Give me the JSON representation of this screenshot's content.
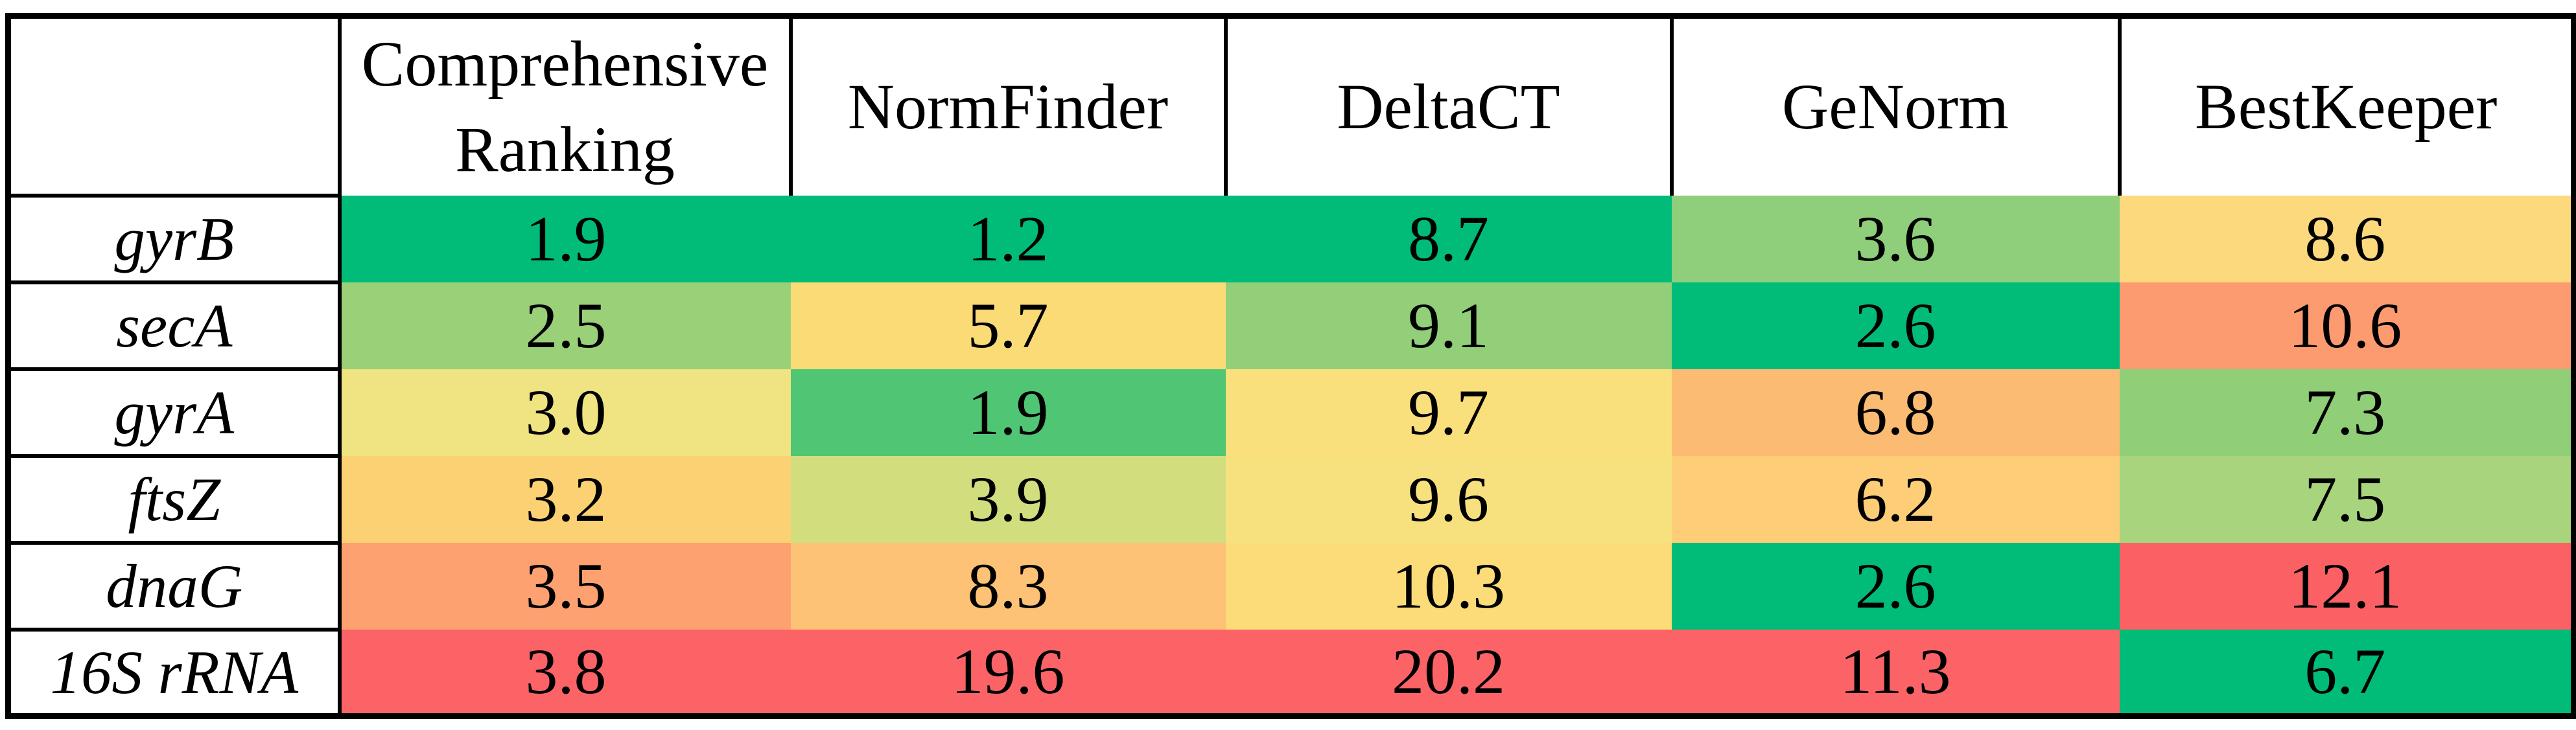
{
  "chart_data": {
    "type": "heatmap",
    "title": "",
    "columns": [
      "Comprehensive Ranking",
      "NormFinder",
      "DeltaCT",
      "GeNorm",
      "BestKeeper"
    ],
    "genes": [
      "gyrB",
      "secA",
      "gyrA",
      "ftsZ",
      "dnaG",
      "16S rRNA"
    ],
    "values": [
      [
        1.9,
        1.2,
        8.7,
        3.6,
        8.6
      ],
      [
        2.5,
        5.7,
        9.1,
        2.6,
        10.6
      ],
      [
        3.0,
        1.9,
        9.7,
        6.8,
        7.3
      ],
      [
        3.2,
        3.9,
        9.6,
        6.2,
        7.5
      ],
      [
        3.5,
        8.3,
        10.3,
        2.6,
        12.1
      ],
      [
        3.8,
        19.6,
        20.2,
        11.3,
        6.7
      ]
    ],
    "color_scale": "green = low (stable) through yellow to red = high (unstable)",
    "scale_colors": {
      "low": "#00BC78",
      "mid": "#FBDB76",
      "high": "#FC6366"
    }
  },
  "table": {
    "header": {
      "corner": "",
      "cols": [
        "Comprehensive Ranking",
        "NormFinder",
        "DeltaCT",
        "GeNorm",
        "BestKeeper"
      ]
    },
    "rows": [
      {
        "gene": "gyrB",
        "cells": [
          {
            "v": "1.9",
            "bg": "#00BC78"
          },
          {
            "v": "1.2",
            "bg": "#00BC78"
          },
          {
            "v": "8.7",
            "bg": "#00BC78"
          },
          {
            "v": "3.6",
            "bg": "#8FCE7B"
          },
          {
            "v": "8.6",
            "bg": "#FDD97D"
          }
        ]
      },
      {
        "gene": "secA",
        "cells": [
          {
            "v": "2.5",
            "bg": "#99D078"
          },
          {
            "v": "5.7",
            "bg": "#FBDB76"
          },
          {
            "v": "9.1",
            "bg": "#92CF78"
          },
          {
            "v": "2.6",
            "bg": "#00BC78"
          },
          {
            "v": "10.6",
            "bg": "#FC9B70"
          }
        ]
      },
      {
        "gene": "gyrA",
        "cells": [
          {
            "v": "3.0",
            "bg": "#F0E382"
          },
          {
            "v": "1.9",
            "bg": "#50C573"
          },
          {
            "v": "9.7",
            "bg": "#FAE07C"
          },
          {
            "v": "6.8",
            "bg": "#FCBB72"
          },
          {
            "v": "7.3",
            "bg": "#90CE77"
          }
        ]
      },
      {
        "gene": "ftsZ",
        "cells": [
          {
            "v": "3.2",
            "bg": "#FCD173"
          },
          {
            "v": "3.9",
            "bg": "#D2DD7E"
          },
          {
            "v": "9.6",
            "bg": "#F7E17E"
          },
          {
            "v": "6.2",
            "bg": "#FDCD78"
          },
          {
            "v": "7.5",
            "bg": "#A7D47C"
          }
        ]
      },
      {
        "gene": "dnaG",
        "cells": [
          {
            "v": "3.5",
            "bg": "#FDA171"
          },
          {
            "v": "8.3",
            "bg": "#FDC275"
          },
          {
            "v": "10.3",
            "bg": "#FBDC78"
          },
          {
            "v": "2.6",
            "bg": "#00BC78"
          },
          {
            "v": "12.1",
            "bg": "#FB6164"
          }
        ]
      },
      {
        "gene": "16S rRNA",
        "cells": [
          {
            "v": "3.8",
            "bg": "#FC6366"
          },
          {
            "v": "19.6",
            "bg": "#FC6366"
          },
          {
            "v": "20.2",
            "bg": "#FC6366"
          },
          {
            "v": "11.3",
            "bg": "#FC6366"
          },
          {
            "v": "6.7",
            "bg": "#00BC78"
          }
        ]
      }
    ]
  }
}
